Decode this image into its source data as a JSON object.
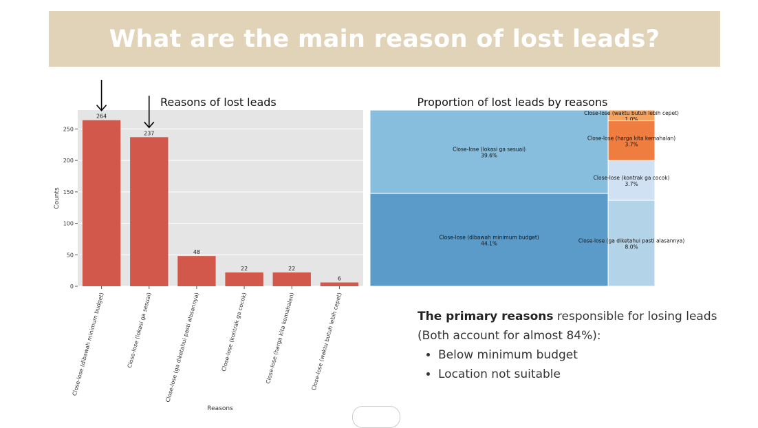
{
  "page": {
    "title": "What are the main reason of lost leads?"
  },
  "chart_data": [
    {
      "type": "bar",
      "title": "Reasons of lost leads",
      "xlabel": "Reasons",
      "ylabel": "Counts",
      "categories": [
        "Close-lose (dibawah minimum budget)",
        "Close-lose (lokasi ga sesuai)",
        "Close-lose (ga diketahui pasti alasannya)",
        "Close-lose (kontrak ga cocok)",
        "Close-lose (harga kita kemahalan)",
        "Close-lose (waktu butuh lebih cepet)"
      ],
      "values": [
        264,
        237,
        48,
        22,
        22,
        6
      ],
      "yticks": [
        0,
        50,
        100,
        150,
        200,
        250
      ],
      "ylim": [
        0,
        280
      ],
      "grid": true,
      "bar_color": "#d1584a",
      "highlighted": [
        "Close-lose (dibawah minimum budget)",
        "Close-lose (lokasi ga sesuai)"
      ]
    },
    {
      "type": "treemap",
      "title": "Proportion of lost leads by reasons",
      "items": [
        {
          "label": "Close-lose (dibawah minimum budget)",
          "pct": "44.1%",
          "value": 44.1,
          "color": "#5b9bc9"
        },
        {
          "label": "Close-lose (lokasi ga sesuai)",
          "pct": "39.6%",
          "value": 39.6,
          "color": "#87bddd"
        },
        {
          "label": "Close-lose (ga diketahui pasti alasannya)",
          "pct": "8.0%",
          "value": 8.0,
          "color": "#b3d4e8"
        },
        {
          "label": "Close-lose (kontrak ga cocok)",
          "pct": "3.7%",
          "value": 3.7,
          "color": "#cfe1f2"
        },
        {
          "label": "Close-lose (harga kita kemahalan)",
          "pct": "3.7%",
          "value": 3.7,
          "color": "#ee7d3f"
        },
        {
          "label": "Close-lose (waktu butuh lebih cepet)",
          "pct": "1.0%",
          "value": 1.0,
          "color": "#f6a35f"
        }
      ]
    }
  ],
  "note": {
    "lead_bold": "The primary reasons",
    "lead_rest": " responsible for losing leads",
    "sub": "(Both account for almost 84%):",
    "bullets": [
      "Below minimum budget",
      "Location not suitable"
    ]
  }
}
